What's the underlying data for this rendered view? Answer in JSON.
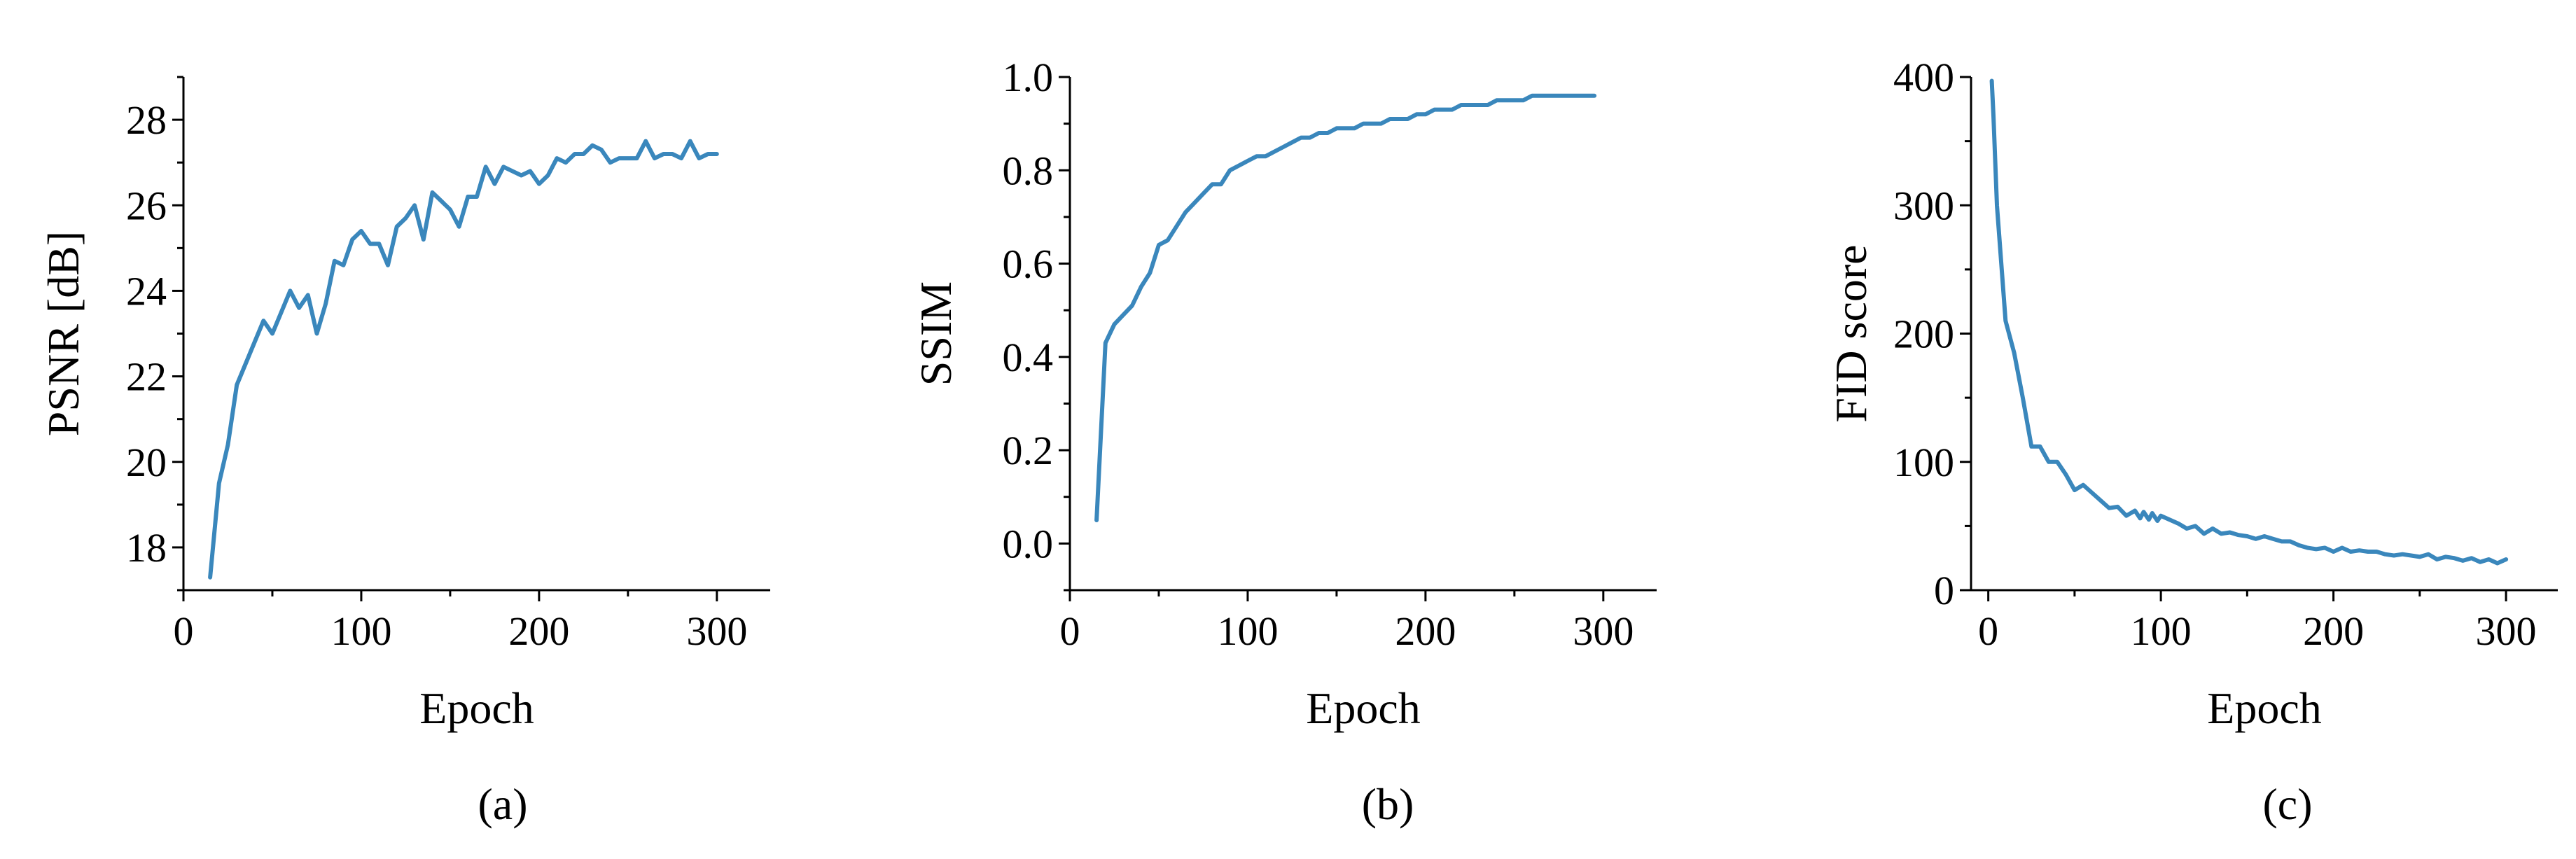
{
  "colors": {
    "series": "#3a87bc",
    "axis": "#000000"
  },
  "chart_data": [
    {
      "type": "line",
      "caption": "(a)",
      "xlabel": "Epoch",
      "ylabel": "PSNR [dB]",
      "xlim": [
        0,
        330
      ],
      "ylim": [
        17,
        29
      ],
      "xticks": [
        0,
        100,
        200,
        300
      ],
      "yticks": [
        18,
        20,
        22,
        24,
        26,
        28
      ],
      "yminor": [
        17,
        19,
        21,
        23,
        25,
        27,
        29
      ],
      "grid": false,
      "ytick_decimals": 0,
      "series": [
        {
          "x": [
            15,
            20,
            25,
            30,
            35,
            40,
            45,
            50,
            55,
            60,
            65,
            70,
            75,
            80,
            85,
            90,
            95,
            100,
            105,
            110,
            115,
            120,
            125,
            130,
            135,
            140,
            145,
            150,
            155,
            160,
            165,
            170,
            175,
            180,
            185,
            190,
            195,
            200,
            205,
            210,
            215,
            220,
            225,
            230,
            235,
            240,
            245,
            250,
            255,
            260,
            265,
            270,
            275,
            280,
            285,
            290,
            295,
            300
          ],
          "y": [
            17.3,
            19.5,
            20.4,
            21.8,
            22.3,
            22.8,
            23.3,
            23.0,
            23.5,
            24.0,
            23.6,
            23.9,
            23.0,
            23.7,
            24.7,
            24.6,
            25.2,
            25.4,
            25.1,
            25.1,
            24.6,
            25.5,
            25.7,
            26.0,
            25.2,
            26.3,
            26.1,
            25.9,
            25.5,
            26.2,
            26.2,
            26.9,
            26.5,
            26.9,
            26.8,
            26.7,
            26.8,
            26.5,
            26.7,
            27.1,
            27.0,
            27.2,
            27.2,
            27.4,
            27.3,
            27.0,
            27.1,
            27.1,
            27.1,
            27.5,
            27.1,
            27.2,
            27.2,
            27.1,
            27.5,
            27.1,
            27.2,
            27.2
          ]
        }
      ]
    },
    {
      "type": "line",
      "caption": "(b)",
      "xlabel": "Epoch",
      "ylabel": "SSIM",
      "xlim": [
        0,
        330
      ],
      "ylim": [
        -0.1,
        1.0
      ],
      "xticks": [
        0,
        100,
        200,
        300
      ],
      "yticks": [
        0.0,
        0.2,
        0.4,
        0.6,
        0.8,
        1.0
      ],
      "yminor": [
        -0.1,
        0.1,
        0.3,
        0.5,
        0.7,
        0.9
      ],
      "grid": false,
      "ytick_decimals": 1,
      "series": [
        {
          "x": [
            15,
            20,
            25,
            30,
            35,
            40,
            45,
            50,
            55,
            60,
            65,
            70,
            75,
            80,
            85,
            90,
            95,
            100,
            105,
            110,
            115,
            120,
            125,
            130,
            135,
            140,
            145,
            150,
            155,
            160,
            165,
            170,
            175,
            180,
            185,
            190,
            195,
            200,
            205,
            210,
            215,
            220,
            225,
            230,
            235,
            240,
            245,
            250,
            255,
            260,
            265,
            270,
            275,
            280,
            285,
            290,
            295
          ],
          "y": [
            0.05,
            0.43,
            0.47,
            0.49,
            0.51,
            0.55,
            0.58,
            0.64,
            0.65,
            0.68,
            0.71,
            0.73,
            0.75,
            0.77,
            0.77,
            0.8,
            0.81,
            0.82,
            0.83,
            0.83,
            0.84,
            0.85,
            0.86,
            0.87,
            0.87,
            0.88,
            0.88,
            0.89,
            0.89,
            0.89,
            0.9,
            0.9,
            0.9,
            0.91,
            0.91,
            0.91,
            0.92,
            0.92,
            0.93,
            0.93,
            0.93,
            0.94,
            0.94,
            0.94,
            0.94,
            0.95,
            0.95,
            0.95,
            0.95,
            0.96,
            0.96,
            0.96,
            0.96,
            0.96,
            0.96,
            0.96,
            0.96
          ]
        }
      ]
    },
    {
      "type": "line",
      "caption": "(c)",
      "xlabel": "Epoch",
      "ylabel": "FID score",
      "xlim": [
        -10,
        330
      ],
      "ylim": [
        0,
        400
      ],
      "xticks": [
        0,
        100,
        200,
        300
      ],
      "yticks": [
        0,
        100,
        200,
        300,
        400
      ],
      "yminor": [
        50,
        150,
        250,
        350
      ],
      "grid": false,
      "ytick_decimals": 0,
      "series": [
        {
          "x": [
            2,
            3,
            5,
            10,
            15,
            20,
            25,
            30,
            35,
            40,
            45,
            50,
            55,
            60,
            65,
            70,
            75,
            80,
            85,
            88,
            90,
            93,
            95,
            98,
            100,
            105,
            110,
            115,
            120,
            125,
            130,
            135,
            140,
            145,
            150,
            155,
            160,
            165,
            170,
            175,
            180,
            185,
            190,
            195,
            200,
            205,
            210,
            215,
            220,
            225,
            230,
            235,
            240,
            245,
            250,
            255,
            260,
            265,
            270,
            275,
            280,
            285,
            290,
            295,
            300
          ],
          "y": [
            397,
            370,
            300,
            210,
            185,
            150,
            112,
            112,
            100,
            100,
            90,
            78,
            82,
            76,
            70,
            64,
            65,
            58,
            62,
            56,
            61,
            55,
            60,
            54,
            58,
            55,
            52,
            48,
            50,
            44,
            48,
            44,
            45,
            43,
            42,
            40,
            42,
            40,
            38,
            38,
            35,
            33,
            32,
            33,
            30,
            33,
            30,
            31,
            30,
            30,
            28,
            27,
            28,
            27,
            26,
            28,
            24,
            26,
            25,
            23,
            25,
            22,
            24,
            21,
            24
          ]
        }
      ]
    }
  ]
}
